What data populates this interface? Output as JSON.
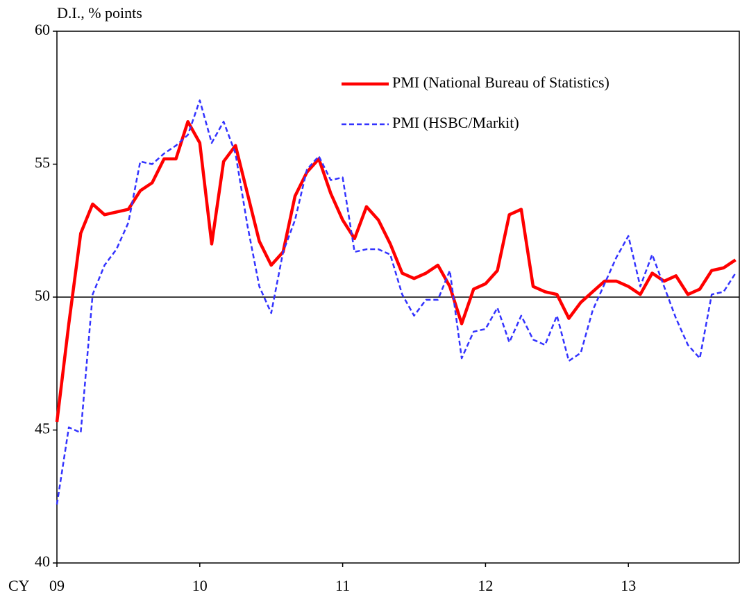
{
  "chart_data": {
    "type": "line",
    "title": "D.I., % points",
    "x_label": "CY",
    "categories": [
      "09",
      null,
      null,
      null,
      null,
      null,
      null,
      null,
      null,
      null,
      null,
      null,
      "10",
      null,
      null,
      null,
      null,
      null,
      null,
      null,
      null,
      null,
      null,
      null,
      "11",
      null,
      null,
      null,
      null,
      null,
      null,
      null,
      null,
      null,
      null,
      null,
      "12",
      null,
      null,
      null,
      null,
      null,
      null,
      null,
      null,
      null,
      null,
      null,
      "13",
      null,
      null,
      null,
      null,
      null,
      null,
      null,
      null,
      null
    ],
    "series": [
      {
        "name": "PMI (National Bureau of Statistics)",
        "color": "#ff0000",
        "dash": false,
        "values": [
          45.3,
          49.0,
          52.4,
          53.5,
          53.1,
          53.2,
          53.3,
          54.0,
          54.3,
          55.2,
          55.2,
          56.6,
          55.8,
          52.0,
          55.1,
          55.7,
          53.9,
          52.1,
          51.2,
          51.7,
          53.8,
          54.7,
          55.2,
          53.9,
          52.9,
          52.2,
          53.4,
          52.9,
          52.0,
          50.9,
          50.7,
          50.9,
          51.2,
          50.4,
          49.0,
          50.3,
          50.5,
          51.0,
          53.1,
          53.3,
          50.4,
          50.2,
          50.1,
          49.2,
          49.8,
          50.2,
          50.6,
          50.6,
          50.4,
          50.1,
          50.9,
          50.6,
          50.8,
          50.1,
          50.3,
          51.0,
          51.1,
          51.4
        ]
      },
      {
        "name": "PMI (HSBC/Markit)",
        "color": "#3333ff",
        "dash": true,
        "values": [
          42.2,
          45.1,
          44.9,
          50.1,
          51.2,
          51.8,
          52.8,
          55.1,
          55.0,
          55.4,
          55.7,
          56.1,
          57.4,
          55.8,
          56.6,
          55.4,
          52.7,
          50.4,
          49.4,
          51.7,
          52.9,
          54.8,
          55.3,
          54.4,
          54.5,
          51.7,
          51.8,
          51.8,
          51.6,
          50.1,
          49.3,
          49.9,
          49.9,
          51.0,
          47.7,
          48.7,
          48.8,
          49.6,
          48.3,
          49.3,
          48.4,
          48.2,
          49.3,
          47.6,
          47.9,
          49.5,
          50.5,
          51.5,
          52.3,
          50.4,
          51.6,
          50.4,
          49.2,
          48.2,
          47.7,
          50.1,
          50.2,
          50.9
        ]
      }
    ],
    "ylim": [
      40,
      60
    ],
    "yticks": [
      40,
      45,
      50,
      55,
      60
    ],
    "reference_line": 50,
    "grid": false
  }
}
